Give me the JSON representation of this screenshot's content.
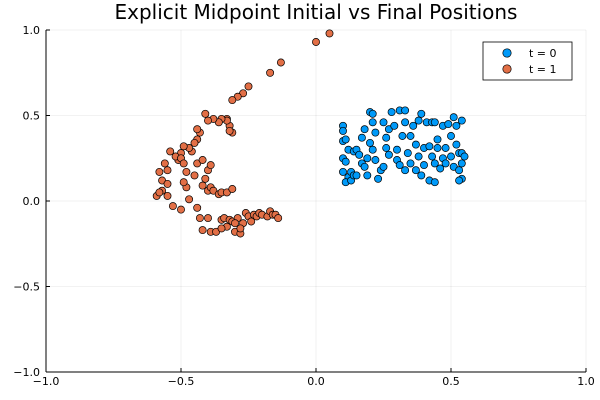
{
  "chart_data": {
    "type": "scatter",
    "title": "Explicit Midpoint Initial vs Final Positions",
    "xlabel": "",
    "ylabel": "",
    "xlim": [
      -1,
      1
    ],
    "ylim": [
      -1,
      1
    ],
    "xticks": [
      -1,
      -0.5,
      0,
      0.5,
      1
    ],
    "yticks": [
      -1,
      -0.5,
      0,
      0.5,
      1
    ],
    "xtick_labels": [
      "−1.0",
      "−0.5",
      "0.0",
      "0.5",
      "1.0"
    ],
    "ytick_labels": [
      "−1.0",
      "−0.5",
      "0.0",
      "0.5",
      "1.0"
    ],
    "grid": true,
    "legend_position": "top-right",
    "series": [
      {
        "name": "t = 0",
        "color": "#009af9",
        "points": [
          [
            0.1,
            0.44
          ],
          [
            0.1,
            0.41
          ],
          [
            0.1,
            0.35
          ],
          [
            0.11,
            0.36
          ],
          [
            0.12,
            0.3
          ],
          [
            0.1,
            0.25
          ],
          [
            0.11,
            0.23
          ],
          [
            0.1,
            0.17
          ],
          [
            0.12,
            0.14
          ],
          [
            0.11,
            0.11
          ],
          [
            0.13,
            0.17
          ],
          [
            0.13,
            0.12
          ],
          [
            0.14,
            0.15
          ],
          [
            0.15,
            0.15
          ],
          [
            0.14,
            0.29
          ],
          [
            0.15,
            0.3
          ],
          [
            0.16,
            0.27
          ],
          [
            0.17,
            0.37
          ],
          [
            0.17,
            0.22
          ],
          [
            0.18,
            0.42
          ],
          [
            0.18,
            0.2
          ],
          [
            0.19,
            0.15
          ],
          [
            0.19,
            0.25
          ],
          [
            0.2,
            0.34
          ],
          [
            0.2,
            0.52
          ],
          [
            0.21,
            0.51
          ],
          [
            0.21,
            0.3
          ],
          [
            0.21,
            0.46
          ],
          [
            0.22,
            0.4
          ],
          [
            0.22,
            0.24
          ],
          [
            0.23,
            0.13
          ],
          [
            0.24,
            0.18
          ],
          [
            0.25,
            0.46
          ],
          [
            0.25,
            0.2
          ],
          [
            0.26,
            0.37
          ],
          [
            0.27,
            0.42
          ],
          [
            0.27,
            0.27
          ],
          [
            0.28,
            0.52
          ],
          [
            0.29,
            0.44
          ],
          [
            0.3,
            0.3
          ],
          [
            0.3,
            0.24
          ],
          [
            0.31,
            0.53
          ],
          [
            0.31,
            0.21
          ],
          [
            0.32,
            0.38
          ],
          [
            0.33,
            0.53
          ],
          [
            0.33,
            0.46
          ],
          [
            0.33,
            0.18
          ],
          [
            0.34,
            0.28
          ],
          [
            0.35,
            0.38
          ],
          [
            0.35,
            0.22
          ],
          [
            0.36,
            0.44
          ],
          [
            0.37,
            0.33
          ],
          [
            0.37,
            0.18
          ],
          [
            0.38,
            0.26
          ],
          [
            0.38,
            0.47
          ],
          [
            0.39,
            0.51
          ],
          [
            0.39,
            0.15
          ],
          [
            0.4,
            0.31
          ],
          [
            0.4,
            0.21
          ],
          [
            0.41,
            0.46
          ],
          [
            0.42,
            0.32
          ],
          [
            0.42,
            0.12
          ],
          [
            0.43,
            0.26
          ],
          [
            0.43,
            0.46
          ],
          [
            0.44,
            0.11
          ],
          [
            0.44,
            0.22
          ],
          [
            0.45,
            0.36
          ],
          [
            0.45,
            0.31
          ],
          [
            0.46,
            0.19
          ],
          [
            0.47,
            0.44
          ],
          [
            0.47,
            0.25
          ],
          [
            0.48,
            0.31
          ],
          [
            0.48,
            0.22
          ],
          [
            0.49,
            0.45
          ],
          [
            0.5,
            0.38
          ],
          [
            0.5,
            0.26
          ],
          [
            0.51,
            0.49
          ],
          [
            0.51,
            0.2
          ],
          [
            0.52,
            0.44
          ],
          [
            0.52,
            0.33
          ],
          [
            0.53,
            0.18
          ],
          [
            0.53,
            0.28
          ],
          [
            0.54,
            0.22
          ],
          [
            0.54,
            0.47
          ],
          [
            0.54,
            0.13
          ],
          [
            0.53,
            0.12
          ],
          [
            0.54,
            0.28
          ],
          [
            0.55,
            0.26
          ],
          [
            0.44,
            0.46
          ],
          [
            0.26,
            0.31
          ]
        ]
      },
      {
        "name": "t = 1",
        "color": "#e26f46",
        "points": [
          [
            0.05,
            0.98
          ],
          [
            0.0,
            0.93
          ],
          [
            -0.13,
            0.81
          ],
          [
            -0.17,
            0.75
          ],
          [
            -0.25,
            0.67
          ],
          [
            -0.27,
            0.63
          ],
          [
            -0.29,
            0.61
          ],
          [
            -0.31,
            0.59
          ],
          [
            -0.33,
            0.48
          ],
          [
            -0.32,
            0.44
          ],
          [
            -0.31,
            0.4
          ],
          [
            -0.32,
            0.41
          ],
          [
            -0.33,
            0.47
          ],
          [
            -0.35,
            0.48
          ],
          [
            -0.36,
            0.46
          ],
          [
            -0.38,
            0.48
          ],
          [
            -0.4,
            0.47
          ],
          [
            -0.41,
            0.51
          ],
          [
            -0.43,
            0.4
          ],
          [
            -0.44,
            0.36
          ],
          [
            -0.45,
            0.34
          ],
          [
            -0.44,
            0.42
          ],
          [
            -0.46,
            0.29
          ],
          [
            -0.47,
            0.31
          ],
          [
            -0.49,
            0.32
          ],
          [
            -0.5,
            0.28
          ],
          [
            -0.51,
            0.24
          ],
          [
            -0.52,
            0.26
          ],
          [
            -0.5,
            0.25
          ],
          [
            -0.49,
            0.22
          ],
          [
            -0.54,
            0.29
          ],
          [
            -0.56,
            0.22
          ],
          [
            -0.55,
            0.18
          ],
          [
            -0.58,
            0.17
          ],
          [
            -0.57,
            0.12
          ],
          [
            -0.55,
            0.1
          ],
          [
            -0.57,
            0.06
          ],
          [
            -0.59,
            0.03
          ],
          [
            -0.58,
            0.05
          ],
          [
            -0.55,
            0.03
          ],
          [
            -0.53,
            -0.03
          ],
          [
            -0.5,
            -0.05
          ],
          [
            -0.47,
            0.01
          ],
          [
            -0.48,
            0.08
          ],
          [
            -0.49,
            0.11
          ],
          [
            -0.48,
            0.17
          ],
          [
            -0.45,
            0.15
          ],
          [
            -0.44,
            0.22
          ],
          [
            -0.42,
            0.24
          ],
          [
            -0.4,
            0.18
          ],
          [
            -0.39,
            0.21
          ],
          [
            -0.41,
            0.13
          ],
          [
            -0.42,
            0.09
          ],
          [
            -0.4,
            0.06
          ],
          [
            -0.39,
            0.08
          ],
          [
            -0.38,
            0.06
          ],
          [
            -0.36,
            0.04
          ],
          [
            -0.35,
            0.05
          ],
          [
            -0.33,
            0.05
          ],
          [
            -0.31,
            0.07
          ],
          [
            -0.44,
            -0.04
          ],
          [
            -0.43,
            -0.1
          ],
          [
            -0.4,
            -0.1
          ],
          [
            -0.42,
            -0.17
          ],
          [
            -0.39,
            -0.18
          ],
          [
            -0.37,
            -0.18
          ],
          [
            -0.35,
            -0.11
          ],
          [
            -0.34,
            -0.1
          ],
          [
            -0.32,
            -0.11
          ],
          [
            -0.31,
            -0.12
          ],
          [
            -0.3,
            -0.18
          ],
          [
            -0.29,
            -0.1
          ],
          [
            -0.28,
            -0.19
          ],
          [
            -0.27,
            -0.13
          ],
          [
            -0.26,
            -0.07
          ],
          [
            -0.25,
            -0.09
          ],
          [
            -0.24,
            -0.12
          ],
          [
            -0.23,
            -0.08
          ],
          [
            -0.22,
            -0.09
          ],
          [
            -0.21,
            -0.07
          ],
          [
            -0.2,
            -0.08
          ],
          [
            -0.18,
            -0.09
          ],
          [
            -0.17,
            -0.06
          ],
          [
            -0.16,
            -0.08
          ],
          [
            -0.15,
            -0.08
          ],
          [
            -0.14,
            -0.1
          ],
          [
            -0.3,
            -0.13
          ],
          [
            -0.33,
            -0.15
          ],
          [
            -0.35,
            -0.16
          ],
          [
            -0.28,
            -0.16
          ]
        ]
      }
    ]
  }
}
